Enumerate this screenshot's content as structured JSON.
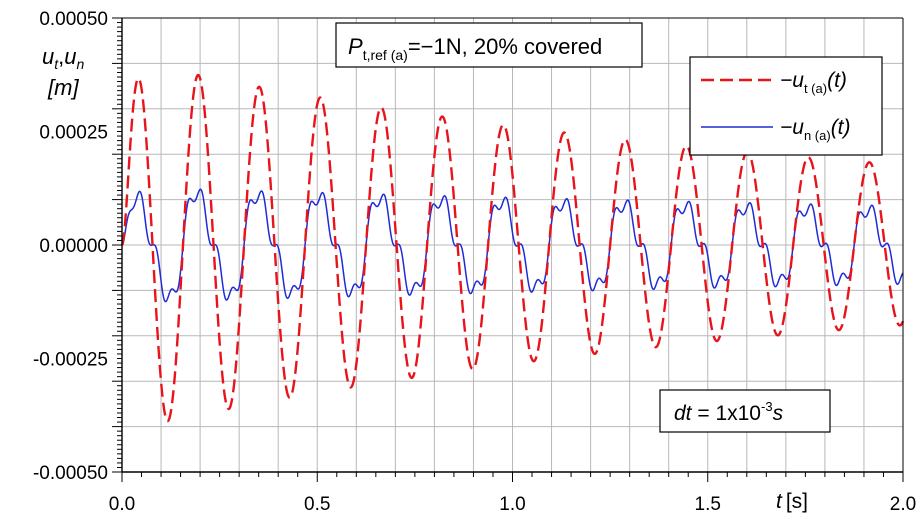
{
  "chart_data": {
    "type": "line",
    "xlim": [
      0,
      2.0
    ],
    "ylim": [
      -0.0005,
      0.0005
    ],
    "x_ticks": [
      0.0,
      0.5,
      1.0,
      1.5,
      2.0
    ],
    "x_tick_labels": [
      "0.0",
      "0.5",
      "1.0",
      "1.5",
      "2.0"
    ],
    "y_ticks": [
      0.0005,
      0.00025,
      0.0,
      -0.00025,
      -0.0005
    ],
    "y_tick_labels": [
      "0.00050",
      "0.00025",
      "0.00000",
      "-0.00025",
      "-0.00050"
    ],
    "grid": true,
    "xlabel": {
      "var": "t",
      "unit": "[s]"
    },
    "ylabel": {
      "line1_a": "u",
      "line1_a_sub": "t",
      "line1_sep": ",",
      "line1_b": "u",
      "line1_b_sub": "n",
      "line2": "[m]"
    },
    "annotations": {
      "top": {
        "var": "P",
        "sub": "t,ref (a)",
        "rest": "=−1N,  20% covered"
      },
      "dt": {
        "var": "dt",
        "eq": " = 1x10",
        "exp": "-3",
        "unit": "s"
      }
    },
    "legend_position": "top-right",
    "series": [
      {
        "id": "ut",
        "legend": {
          "prefix": "−u",
          "sub": "t (a)",
          "suffix": "(t)"
        },
        "color": "#e8141b",
        "style": "dashed",
        "model": {
          "f1": 6.4,
          "A1": 0.00035,
          "tau1": 10,
          "f2": 1.6,
          "A2": 8e-05
        },
        "peaks": {
          "x": [
            0.05,
            0.13,
            0.2,
            0.28,
            0.36,
            0.43,
            0.51,
            0.58,
            0.66,
            0.74,
            0.81,
            0.89,
            0.96,
            1.04,
            1.12,
            1.2,
            1.28,
            1.35,
            1.43,
            1.5,
            1.58,
            1.66,
            1.74,
            1.82,
            1.9,
            1.98
          ],
          "y": [
            0.00044,
            -0.00041,
            0.00039,
            -0.00037,
            0.00035,
            -0.00033,
            0.00031,
            -0.00029,
            0.00027,
            -0.00026,
            0.00023,
            -0.00021,
            0.00019,
            -0.00017,
            0.00017,
            -0.00015,
            0.00016,
            -0.00014,
            0.00015,
            -0.00013,
            0.00013,
            -0.00012,
            0.00012,
            -0.00011,
            8e-05,
            -5e-05
          ]
        }
      },
      {
        "id": "un",
        "legend": {
          "prefix": "−u",
          "sub": "n (a)",
          "suffix": "(t)"
        },
        "color": "#1f2bd6",
        "style": "solid",
        "model": {
          "f1": 6.4,
          "A1": 0.00012,
          "f2": 12.8,
          "A2": 5e-05,
          "f3": 25.6,
          "A3": 3e-05,
          "tau": 8
        },
        "peaks": {
          "x": [
            0.02,
            0.05,
            0.13,
            0.2,
            0.28,
            0.36,
            0.43,
            0.51,
            0.58,
            0.66,
            0.74,
            0.81,
            0.89,
            0.96,
            1.04,
            1.12,
            1.2,
            1.28,
            1.35,
            1.43,
            1.5,
            1.58,
            1.66,
            1.74,
            1.82,
            1.9,
            1.98
          ],
          "y": [
            0.00016,
            0.00016,
            -0.00017,
            0.00017,
            -0.00018,
            0.00017,
            -0.00017,
            0.00017,
            -0.00016,
            0.00016,
            -0.00015,
            0.00013,
            -0.00012,
            0.00013,
            -0.00012,
            0.00013,
            -0.00011,
            0.00012,
            -0.0001,
            0.00011,
            -0.0001,
            0.0001,
            -9e-05,
            0.00011,
            -9e-05,
            9e-05,
            -8e-05
          ]
        }
      }
    ]
  }
}
